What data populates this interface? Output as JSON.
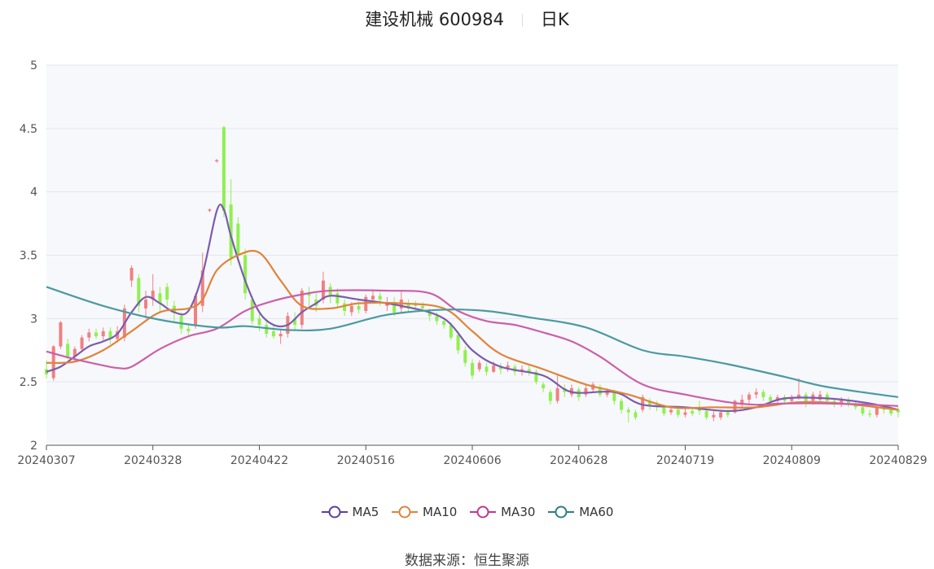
{
  "title": {
    "name": "建设机械 600984",
    "period": "日K"
  },
  "source": {
    "label": "数据来源：",
    "value": "恒生聚源"
  },
  "colors": {
    "up": "#f08080",
    "down": "#8ff04f",
    "plot_bg": "#f7f8fc",
    "grid": "#e3e6f0"
  },
  "chart_data": {
    "type": "candlestick",
    "ylim": [
      2,
      5
    ],
    "yticks": [
      "2",
      "2.5",
      "3",
      "3.5",
      "4",
      "4.5",
      "5"
    ],
    "xtick_labels": [
      "20240307",
      "20240328",
      "20240422",
      "20240516",
      "20240606",
      "20240628",
      "20240719",
      "20240809",
      "20240829"
    ],
    "grid": true,
    "legend_position": "bottom",
    "n_days": 121,
    "candles": [
      [
        2.6,
        2.56,
        2.67,
        2.53
      ],
      [
        2.53,
        2.78,
        2.79,
        2.51
      ],
      [
        2.78,
        2.97,
        2.98,
        2.76
      ],
      [
        2.8,
        2.7,
        2.84,
        2.68
      ],
      [
        2.7,
        2.76,
        2.78,
        2.66
      ],
      [
        2.76,
        2.85,
        2.87,
        2.74
      ],
      [
        2.85,
        2.89,
        2.92,
        2.82
      ],
      [
        2.89,
        2.86,
        2.92,
        2.84
      ],
      [
        2.86,
        2.9,
        2.93,
        2.83
      ],
      [
        2.9,
        2.84,
        2.93,
        2.8
      ],
      [
        2.84,
        2.9,
        2.94,
        2.81
      ],
      [
        2.85,
        3.08,
        3.11,
        2.82
      ],
      [
        3.3,
        3.4,
        3.42,
        3.25
      ],
      [
        3.32,
        3.1,
        3.35,
        3.05
      ],
      [
        3.08,
        3.15,
        3.22,
        3.0
      ],
      [
        3.15,
        3.22,
        3.35,
        3.1
      ],
      [
        3.2,
        3.12,
        3.25,
        3.05
      ],
      [
        3.25,
        3.15,
        3.28,
        3.1
      ],
      [
        3.1,
        3.05,
        3.14,
        2.98
      ],
      [
        3.02,
        2.92,
        3.05,
        2.88
      ],
      [
        2.92,
        2.9,
        2.96,
        2.87
      ],
      [
        2.95,
        3.18,
        3.2,
        2.92
      ],
      [
        3.1,
        3.38,
        3.52,
        3.05
      ],
      [
        3.85,
        3.86,
        3.87,
        3.84
      ],
      [
        4.24,
        4.25,
        4.26,
        4.23
      ],
      [
        4.51,
        3.85,
        4.52,
        3.8
      ],
      [
        3.9,
        3.48,
        4.1,
        3.42
      ],
      [
        3.75,
        3.5,
        3.8,
        3.45
      ],
      [
        3.5,
        3.2,
        3.55,
        3.15
      ],
      [
        3.15,
        2.98,
        3.18,
        2.95
      ],
      [
        3.0,
        2.95,
        3.05,
        2.9
      ],
      [
        2.95,
        2.88,
        3.0,
        2.85
      ],
      [
        2.9,
        2.86,
        2.95,
        2.84
      ],
      [
        2.86,
        2.88,
        2.92,
        2.8
      ],
      [
        2.88,
        3.02,
        3.05,
        2.85
      ],
      [
        3.0,
        2.95,
        3.05,
        2.9
      ],
      [
        2.95,
        3.22,
        3.24,
        2.92
      ],
      [
        3.2,
        3.18,
        3.25,
        3.1
      ],
      [
        3.15,
        3.1,
        3.2,
        3.05
      ],
      [
        3.15,
        3.3,
        3.37,
        3.12
      ],
      [
        3.25,
        3.18,
        3.28,
        3.12
      ],
      [
        3.2,
        3.12,
        3.24,
        3.08
      ],
      [
        3.12,
        3.06,
        3.15,
        3.02
      ],
      [
        3.05,
        3.1,
        3.13,
        3.02
      ],
      [
        3.1,
        3.07,
        3.14,
        3.04
      ],
      [
        3.06,
        3.17,
        3.19,
        3.04
      ],
      [
        3.15,
        3.18,
        3.22,
        3.12
      ],
      [
        3.18,
        3.15,
        3.21,
        3.1
      ],
      [
        3.1,
        3.13,
        3.17,
        3.06
      ],
      [
        3.13,
        3.05,
        3.17,
        3.02
      ],
      [
        3.08,
        3.15,
        3.22,
        3.05
      ],
      [
        3.12,
        3.08,
        3.15,
        3.05
      ],
      [
        3.12,
        3.1,
        3.14,
        3.06
      ],
      [
        3.1,
        3.08,
        3.13,
        3.05
      ],
      [
        3.05,
        3.02,
        3.08,
        2.98
      ],
      [
        3.02,
        2.98,
        3.05,
        2.95
      ],
      [
        2.98,
        2.95,
        3.0,
        2.92
      ],
      [
        2.95,
        2.85,
        2.97,
        2.83
      ],
      [
        2.87,
        2.75,
        2.9,
        2.72
      ],
      [
        2.75,
        2.65,
        2.78,
        2.62
      ],
      [
        2.65,
        2.55,
        2.68,
        2.52
      ],
      [
        2.6,
        2.65,
        2.67,
        2.58
      ],
      [
        2.62,
        2.58,
        2.65,
        2.55
      ],
      [
        2.58,
        2.63,
        2.66,
        2.57
      ],
      [
        2.62,
        2.6,
        2.65,
        2.56
      ],
      [
        2.6,
        2.63,
        2.66,
        2.58
      ],
      [
        2.62,
        2.58,
        2.64,
        2.55
      ],
      [
        2.58,
        2.6,
        2.63,
        2.55
      ],
      [
        2.6,
        2.58,
        2.63,
        2.55
      ],
      [
        2.58,
        2.5,
        2.6,
        2.48
      ],
      [
        2.48,
        2.45,
        2.5,
        2.42
      ],
      [
        2.42,
        2.35,
        2.44,
        2.32
      ],
      [
        2.35,
        2.45,
        2.55,
        2.33
      ],
      [
        2.45,
        2.42,
        2.48,
        2.38
      ],
      [
        2.4,
        2.45,
        2.48,
        2.38
      ],
      [
        2.44,
        2.38,
        2.46,
        2.35
      ],
      [
        2.4,
        2.45,
        2.48,
        2.38
      ],
      [
        2.44,
        2.48,
        2.5,
        2.42
      ],
      [
        2.46,
        2.4,
        2.48,
        2.38
      ],
      [
        2.4,
        2.42,
        2.45,
        2.38
      ],
      [
        2.42,
        2.35,
        2.44,
        2.32
      ],
      [
        2.35,
        2.28,
        2.37,
        2.25
      ],
      [
        2.28,
        2.26,
        2.3,
        2.18
      ],
      [
        2.26,
        2.22,
        2.28,
        2.2
      ],
      [
        2.28,
        2.38,
        2.4,
        2.26
      ],
      [
        2.35,
        2.32,
        2.37,
        2.28
      ],
      [
        2.32,
        2.3,
        2.35,
        2.27
      ],
      [
        2.3,
        2.25,
        2.32,
        2.23
      ],
      [
        2.26,
        2.28,
        2.3,
        2.24
      ],
      [
        2.28,
        2.24,
        2.29,
        2.22
      ],
      [
        2.24,
        2.26,
        2.3,
        2.22
      ],
      [
        2.27,
        2.25,
        2.29,
        2.23
      ],
      [
        2.3,
        2.27,
        2.35,
        2.24
      ],
      [
        2.27,
        2.22,
        2.28,
        2.2
      ],
      [
        2.22,
        2.24,
        2.27,
        2.19
      ],
      [
        2.22,
        2.26,
        2.28,
        2.2
      ],
      [
        2.26,
        2.24,
        2.28,
        2.22
      ],
      [
        2.26,
        2.35,
        2.36,
        2.25
      ],
      [
        2.32,
        2.36,
        2.4,
        2.3
      ],
      [
        2.36,
        2.4,
        2.42,
        2.33
      ],
      [
        2.4,
        2.42,
        2.45,
        2.37
      ],
      [
        2.42,
        2.38,
        2.44,
        2.35
      ],
      [
        2.38,
        2.35,
        2.4,
        2.33
      ],
      [
        2.35,
        2.38,
        2.4,
        2.33
      ],
      [
        2.38,
        2.35,
        2.4,
        2.32
      ],
      [
        2.35,
        2.38,
        2.4,
        2.33
      ],
      [
        2.38,
        2.4,
        2.53,
        2.36
      ],
      [
        2.4,
        2.33,
        2.42,
        2.3
      ],
      [
        2.35,
        2.4,
        2.42,
        2.32
      ],
      [
        2.36,
        2.4,
        2.43,
        2.33
      ],
      [
        2.4,
        2.35,
        2.42,
        2.32
      ],
      [
        2.35,
        2.32,
        2.37,
        2.3
      ],
      [
        2.32,
        2.36,
        2.38,
        2.3
      ],
      [
        2.36,
        2.32,
        2.38,
        2.3
      ],
      [
        2.32,
        2.3,
        2.34,
        2.28
      ],
      [
        2.3,
        2.25,
        2.32,
        2.23
      ],
      [
        2.25,
        2.24,
        2.28,
        2.22
      ],
      [
        2.24,
        2.3,
        2.32,
        2.22
      ],
      [
        2.3,
        2.28,
        2.32,
        2.25
      ],
      [
        2.28,
        2.25,
        2.3,
        2.23
      ],
      [
        2.28,
        2.26,
        2.3,
        2.22
      ]
    ],
    "series": [
      {
        "name": "MA5",
        "color": "#7b5cb0",
        "x": [
          0,
          2,
          4,
          6,
          8,
          10,
          12,
          14,
          16,
          18,
          20,
          22,
          24,
          25,
          26,
          28,
          30,
          32,
          34,
          36,
          38,
          40,
          44,
          50,
          56,
          60,
          64,
          70,
          74,
          80,
          84,
          90,
          96,
          100,
          104,
          110,
          116,
          120
        ],
        "values": [
          2.58,
          2.62,
          2.7,
          2.78,
          2.82,
          2.88,
          3.05,
          3.17,
          3.12,
          3.05,
          3.06,
          3.35,
          3.85,
          3.86,
          3.65,
          3.3,
          3.05,
          2.95,
          2.95,
          3.05,
          3.12,
          3.18,
          3.15,
          3.1,
          3.0,
          2.75,
          2.62,
          2.55,
          2.42,
          2.42,
          2.32,
          2.3,
          2.27,
          2.3,
          2.37,
          2.37,
          2.33,
          2.28
        ]
      },
      {
        "name": "MA10",
        "color": "#e0843a",
        "x": [
          0,
          4,
          8,
          12,
          16,
          20,
          22,
          24,
          27,
          30,
          33,
          36,
          40,
          44,
          50,
          56,
          60,
          64,
          70,
          76,
          82,
          88,
          94,
          100,
          106,
          112,
          120
        ],
        "values": [
          2.65,
          2.66,
          2.75,
          2.9,
          3.05,
          3.08,
          3.15,
          3.38,
          3.5,
          3.52,
          3.3,
          3.1,
          3.08,
          3.12,
          3.12,
          3.08,
          2.9,
          2.72,
          2.6,
          2.48,
          2.4,
          2.3,
          2.3,
          2.3,
          2.34,
          2.33,
          2.28
        ]
      },
      {
        "name": "MA30",
        "color": "#cc5fa8",
        "x": [
          0,
          4,
          8,
          10,
          12,
          16,
          20,
          24,
          28,
          32,
          36,
          40,
          48,
          54,
          58,
          62,
          66,
          70,
          74,
          78,
          84,
          90,
          96,
          100,
          104,
          110,
          116,
          120
        ],
        "values": [
          2.74,
          2.68,
          2.63,
          2.61,
          2.62,
          2.76,
          2.86,
          2.92,
          3.06,
          3.14,
          3.19,
          3.22,
          3.22,
          3.2,
          3.06,
          2.98,
          2.95,
          2.89,
          2.82,
          2.7,
          2.48,
          2.4,
          2.34,
          2.32,
          2.33,
          2.33,
          2.32,
          2.31
        ]
      },
      {
        "name": "MA60",
        "color": "#4a9aa0",
        "x": [
          0,
          8,
          16,
          24,
          28,
          34,
          40,
          48,
          56,
          62,
          68,
          76,
          84,
          90,
          96,
          104,
          110,
          120
        ],
        "values": [
          3.25,
          3.1,
          2.99,
          2.93,
          2.94,
          2.91,
          2.92,
          3.03,
          3.07,
          3.06,
          3.01,
          2.93,
          2.75,
          2.7,
          2.64,
          2.54,
          2.46,
          2.38
        ]
      }
    ]
  }
}
